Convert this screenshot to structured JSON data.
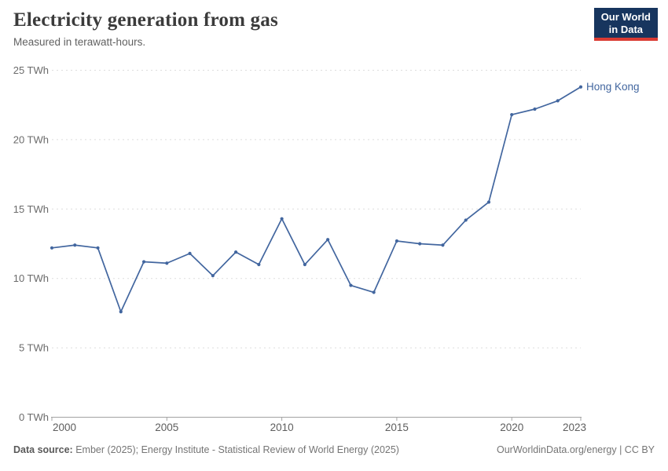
{
  "header": {
    "title": "Electricity generation from gas",
    "subtitle": "Measured in terawatt-hours.",
    "logo": {
      "line1": "Our World",
      "line2": "in Data"
    }
  },
  "chart_data": {
    "type": "line",
    "title": "Electricity generation from gas",
    "subtitle": "Measured in terawatt-hours.",
    "x": [
      2000,
      2001,
      2002,
      2003,
      2004,
      2005,
      2006,
      2007,
      2008,
      2009,
      2010,
      2011,
      2012,
      2013,
      2014,
      2015,
      2016,
      2017,
      2018,
      2019,
      2020,
      2021,
      2022,
      2023
    ],
    "series": [
      {
        "name": "Hong Kong",
        "color": "#42669F",
        "values": [
          12.2,
          12.4,
          12.2,
          7.6,
          11.2,
          11.1,
          11.8,
          10.2,
          11.9,
          11.0,
          14.3,
          11.0,
          12.8,
          9.5,
          9.0,
          12.7,
          12.5,
          12.4,
          14.2,
          15.5,
          21.8,
          22.2,
          22.8,
          23.8
        ]
      }
    ],
    "xlabel": "",
    "ylabel": "",
    "xlim": [
      2000,
      2023
    ],
    "ylim": [
      0,
      25
    ],
    "yticks": [
      0,
      5,
      10,
      15,
      20,
      25
    ],
    "ytick_suffix": " TWh",
    "xticks": [
      2000,
      2005,
      2010,
      2015,
      2020,
      2023
    ],
    "grid": "horizontal-dashed",
    "legend_position": "end-of-line-label"
  },
  "colors": {
    "line": "#42669F",
    "gridline": "#DEDEDE",
    "axis": "#A3A3A3",
    "logo_bg": "#17355E",
    "logo_accent": "#DA3B33"
  },
  "footer": {
    "datasource_prefix": "Data source:",
    "datasource_text": "Ember (2025); Energy Institute - Statistical Review of World Energy (2025)",
    "link_text": "OurWorldinData.org/energy | CC BY"
  }
}
